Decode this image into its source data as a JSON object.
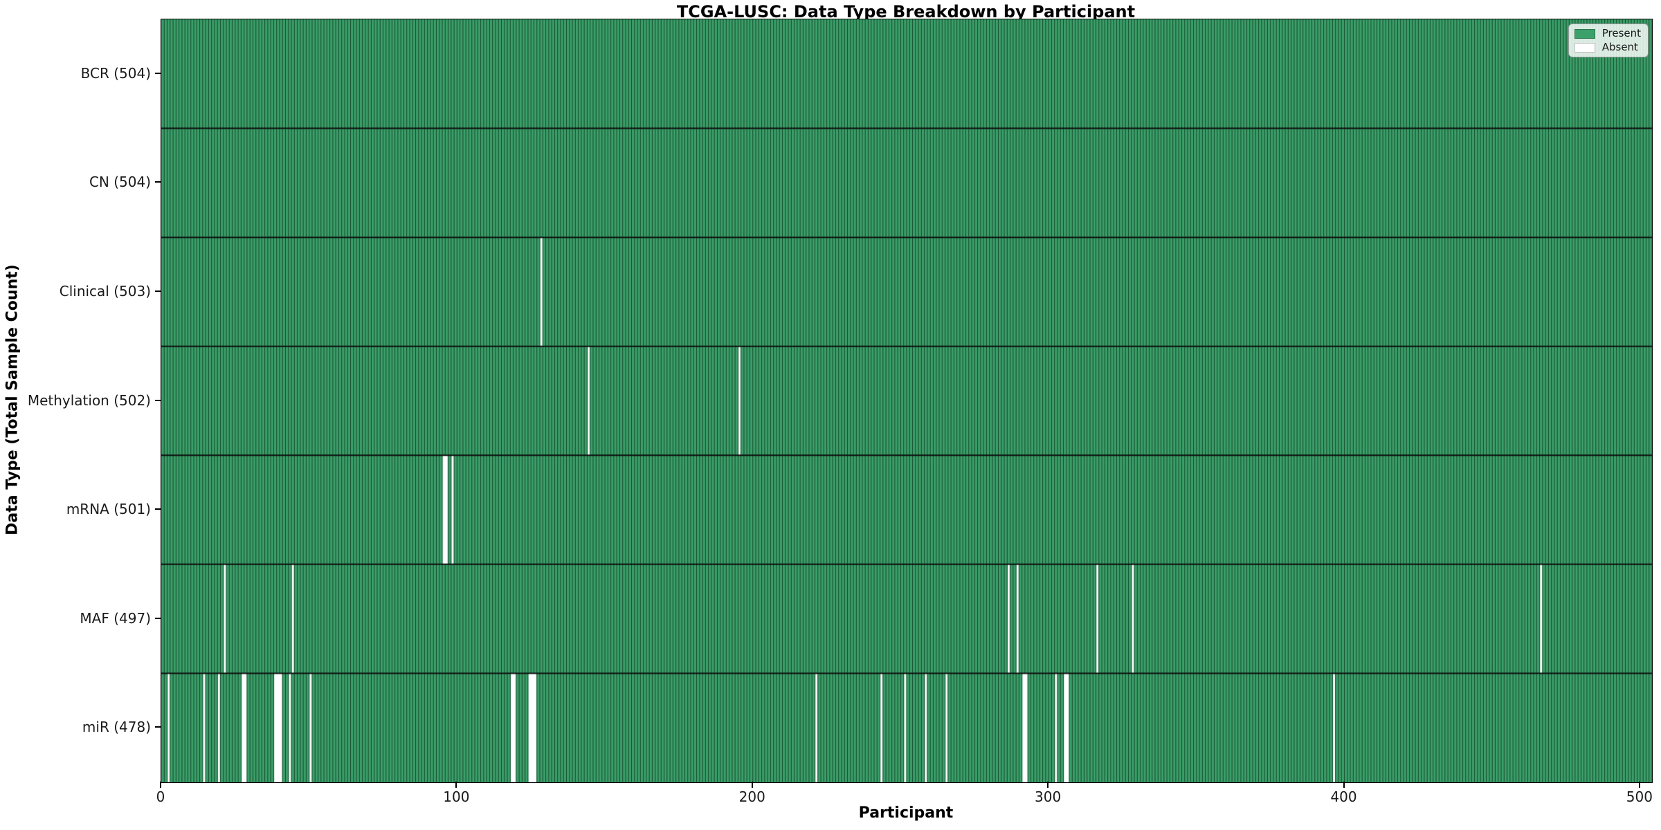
{
  "title": "TCGA-LUSC: Data Type Breakdown by Participant",
  "chart_data": {
    "type": "heatmap",
    "title": "TCGA-LUSC: Data Type Breakdown by Participant",
    "xlabel": "Participant",
    "ylabel": "Data Type (Total Sample Count)",
    "n_participants": 504,
    "x_ticks": [
      0,
      100,
      200,
      300,
      400,
      500
    ],
    "x_range": [
      0,
      504
    ],
    "grid": false,
    "legend_position": "upper right",
    "legend": [
      {
        "label": "Present",
        "color": "#3CA06A"
      },
      {
        "label": "Absent",
        "color": "#FFFFFF"
      }
    ],
    "colors": {
      "present_fill": "#3CA06A",
      "bar_edge": "rgba(3,32,16,0.72)",
      "absent_fill": "#FFFFFF",
      "row_separator": "#0d0d0d"
    },
    "rows": [
      {
        "label": "BCR (504)",
        "data_type": "BCR",
        "total": 504,
        "absent": []
      },
      {
        "label": "CN (504)",
        "data_type": "CN",
        "total": 504,
        "absent": []
      },
      {
        "label": "Clinical (503)",
        "data_type": "Clinical",
        "total": 503,
        "absent": [
          128
        ]
      },
      {
        "label": "Methylation (502)",
        "data_type": "Methylation",
        "total": 502,
        "absent": [
          144,
          195
        ]
      },
      {
        "label": "mRNA (501)",
        "data_type": "mRNA",
        "total": 501,
        "absent": [
          95,
          96,
          98
        ]
      },
      {
        "label": "MAF (497)",
        "data_type": "MAF",
        "total": 497,
        "absent": [
          21,
          44,
          286,
          289,
          316,
          328,
          466
        ]
      },
      {
        "label": "miR (478)",
        "data_type": "miR",
        "total": 478,
        "absent": [
          2,
          14,
          19,
          27,
          28,
          38,
          39,
          40,
          43,
          50,
          118,
          119,
          124,
          125,
          126,
          221,
          243,
          251,
          258,
          265,
          291,
          292,
          302,
          305,
          306,
          396
        ]
      }
    ]
  }
}
